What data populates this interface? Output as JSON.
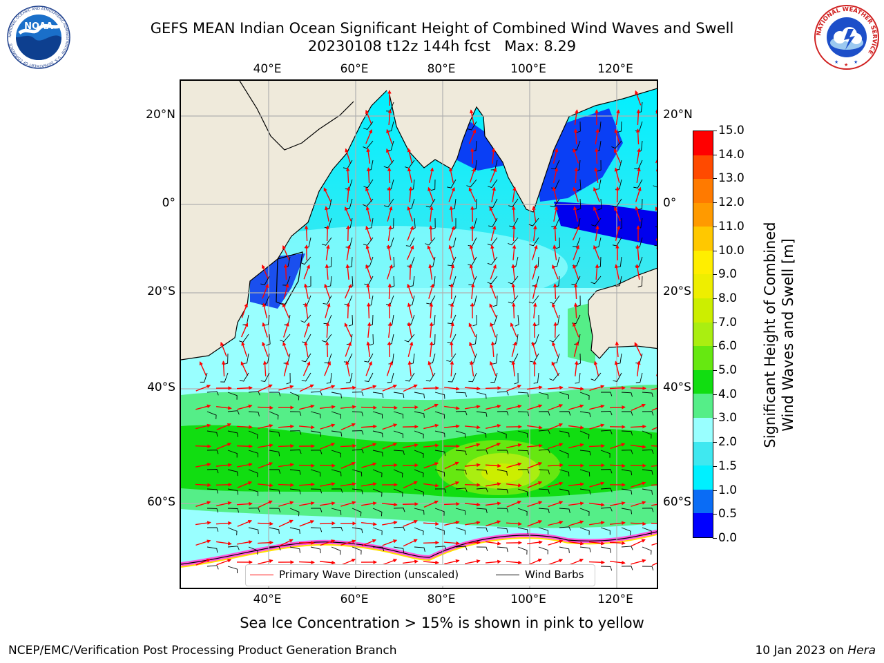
{
  "header": {
    "title_line1": "GEFS MEAN Indian Ocean Significant Height of Combined Wind Waves and Swell",
    "title_line2": "20230108 t12z 144h fcst   Max: 8.29"
  },
  "logos": {
    "noaa_text": "NOAA",
    "noaa_ring_text": "NATIONAL OCEANIC AND ATMOSPHERIC ADMINISTRATION · U.S. DEPARTMENT OF COMMERCE",
    "nws_ring_text": "NATIONAL WEATHER SERVICE"
  },
  "map": {
    "lon_labels": [
      "40°E",
      "60°E",
      "80°E",
      "100°E",
      "120°E"
    ],
    "lat_labels": [
      "20°N",
      "0°",
      "20°S",
      "40°S",
      "60°S"
    ],
    "grid": true,
    "colors": {
      "land": "#efeadb",
      "grid": "#b0b0b0",
      "coast": "#000000"
    }
  },
  "legend": {
    "wave_label": "Primary Wave Direction (unscaled)",
    "wave_color": "#ff0000",
    "wind_label": "Wind Barbs",
    "wind_color": "#000000"
  },
  "colorbar": {
    "label_line1": "Significant Height of Combined",
    "label_line2": "Wind Waves and Swell [m]",
    "ticks": [
      "0.0",
      "0.5",
      "1.0",
      "1.5",
      "2.0",
      "3.0",
      "4.0",
      "5.0",
      "6.0",
      "7.0",
      "8.0",
      "9.0",
      "10.0",
      "11.0",
      "12.0",
      "13.0",
      "14.0",
      "15.0"
    ],
    "colors": [
      "#0000ff",
      "#0a6cf5",
      "#00f0ff",
      "#3fe8f0",
      "#99ffff",
      "#55ee88",
      "#11dd11",
      "#66e811",
      "#aaee11",
      "#ccee00",
      "#eeee00",
      "#ffee00",
      "#ffc800",
      "#ff9a00",
      "#ff7a00",
      "#ff4a00",
      "#ff0000"
    ]
  },
  "caption": "Sea Ice Concentration > 15% is shown in pink to yellow",
  "footer": {
    "left": "NCEP/EMC/Verification Post Processing Product Generation Branch",
    "right_prefix": "10 Jan 2023 on ",
    "right_host": "Hera"
  }
}
